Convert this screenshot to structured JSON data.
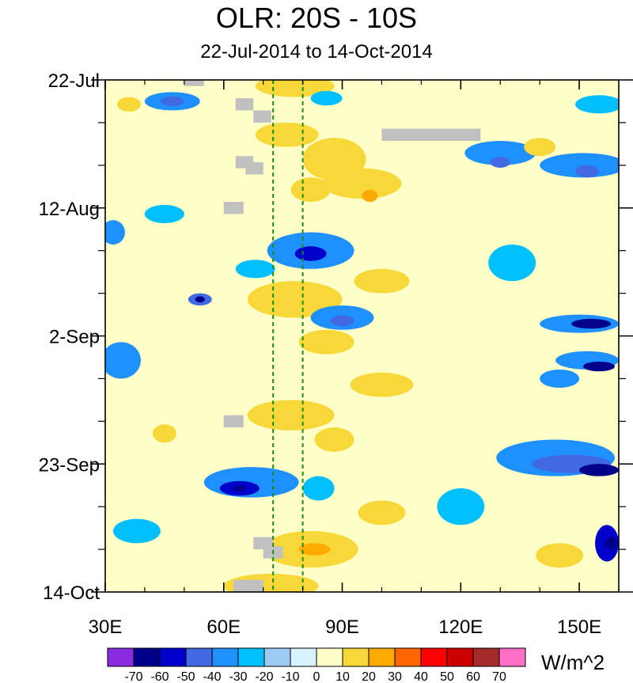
{
  "chart_data": {
    "type": "heatmap",
    "title": "OLR: 20S - 10S",
    "subtitle": "22-Jul-2014 to 14-Oct-2014",
    "xlabel": "",
    "ylabel": "",
    "xlim": [
      30,
      160
    ],
    "ylim_days": [
      0,
      84
    ],
    "x_ticks": [
      {
        "value": 30,
        "label": "30E"
      },
      {
        "value": 60,
        "label": "60E"
      },
      {
        "value": 90,
        "label": "90E"
      },
      {
        "value": 120,
        "label": "120E"
      },
      {
        "value": 150,
        "label": "150E"
      }
    ],
    "y_ticks": [
      {
        "day": 0,
        "label": "22-Jul"
      },
      {
        "day": 21,
        "label": "12-Aug"
      },
      {
        "day": 42,
        "label": "2-Sep"
      },
      {
        "day": 63,
        "label": "23-Sep"
      },
      {
        "day": 84,
        "label": "14-Oct"
      }
    ],
    "reference_lines_lon": [
      72.5,
      80
    ],
    "colorbar": {
      "units": "W/m^2",
      "labels": [
        "-70",
        "-60",
        "-50",
        "-40",
        "-30",
        "-20",
        "-10",
        "0",
        "10",
        "20",
        "30",
        "40",
        "50",
        "60",
        "70"
      ],
      "colors": [
        "#8a2be2",
        "#00008b",
        "#0000cd",
        "#4169e1",
        "#1e90ff",
        "#00bfff",
        "#9ecbf4",
        "#d8f3ff",
        "#ffffc8",
        "#f8d838",
        "#ffaa00",
        "#ff6600",
        "#ff0000",
        "#cc0000",
        "#a52a2a",
        "#ff6ec7"
      ]
    },
    "anomaly_regions": [
      {
        "lon": 36,
        "day": 4,
        "rlon": 3,
        "rday": 1.2,
        "value": 15
      },
      {
        "lon": 47,
        "day": 3.5,
        "rlon": 7,
        "rday": 1.5,
        "value": -25
      },
      {
        "lon": 47,
        "day": 3.5,
        "rlon": 3,
        "rday": 0.8,
        "value": -35
      },
      {
        "lon": 78,
        "day": 1,
        "rlon": 10,
        "rday": 1.8,
        "value": 15
      },
      {
        "lon": 86,
        "day": 3,
        "rlon": 4,
        "rday": 1.2,
        "value": -15
      },
      {
        "lon": 76,
        "day": 9,
        "rlon": 8,
        "rday": 2,
        "value": 15
      },
      {
        "lon": 88,
        "day": 13,
        "rlon": 8,
        "rday": 3.5,
        "value": 15
      },
      {
        "lon": 95,
        "day": 17,
        "rlon": 10,
        "rday": 2.5,
        "value": 15
      },
      {
        "lon": 97,
        "day": 19,
        "rlon": 2,
        "rday": 1,
        "value": 25
      },
      {
        "lon": 82,
        "day": 18,
        "rlon": 5,
        "rday": 2,
        "value": 15
      },
      {
        "lon": 130,
        "day": 12,
        "rlon": 9,
        "rday": 2,
        "value": -25
      },
      {
        "lon": 130,
        "day": 13.5,
        "rlon": 2.5,
        "rday": 0.9,
        "value": -35
      },
      {
        "lon": 151,
        "day": 14,
        "rlon": 11,
        "rday": 2,
        "value": -25
      },
      {
        "lon": 152,
        "day": 15,
        "rlon": 3,
        "rday": 1,
        "value": -35
      },
      {
        "lon": 155,
        "day": 4,
        "rlon": 6,
        "rday": 1.5,
        "value": -20
      },
      {
        "lon": 140,
        "day": 11,
        "rlon": 4,
        "rday": 1.5,
        "value": 10
      },
      {
        "lon": 32,
        "day": 25,
        "rlon": 3,
        "rday": 2,
        "value": -30
      },
      {
        "lon": 45,
        "day": 22,
        "rlon": 5,
        "rday": 1.5,
        "value": -15
      },
      {
        "lon": 82,
        "day": 28,
        "rlon": 11,
        "rday": 3,
        "value": -25
      },
      {
        "lon": 82,
        "day": 28.5,
        "rlon": 4,
        "rday": 1.2,
        "value": -45
      },
      {
        "lon": 68,
        "day": 31,
        "rlon": 5,
        "rday": 1.5,
        "value": -20
      },
      {
        "lon": 54,
        "day": 36,
        "rlon": 3,
        "rday": 1,
        "value": -40
      },
      {
        "lon": 54,
        "day": 36,
        "rlon": 1.2,
        "rday": 0.5,
        "value": -60
      },
      {
        "lon": 78,
        "day": 36,
        "rlon": 12,
        "rday": 3,
        "value": 15
      },
      {
        "lon": 90,
        "day": 39,
        "rlon": 8,
        "rday": 2,
        "value": -25
      },
      {
        "lon": 90,
        "day": 39.5,
        "rlon": 3,
        "rday": 0.9,
        "value": -40
      },
      {
        "lon": 86,
        "day": 43,
        "rlon": 7,
        "rday": 2,
        "value": 15
      },
      {
        "lon": 100,
        "day": 33,
        "rlon": 7,
        "rday": 2,
        "value": 15
      },
      {
        "lon": 34,
        "day": 46,
        "rlon": 5,
        "rday": 3,
        "value": -25
      },
      {
        "lon": 34,
        "day": 47,
        "rlon": 3,
        "rday": 1.2,
        "value": -30
      },
      {
        "lon": 150,
        "day": 40,
        "rlon": 10,
        "rday": 1.5,
        "value": -30
      },
      {
        "lon": 153,
        "day": 40,
        "rlon": 5,
        "rday": 0.8,
        "value": -60
      },
      {
        "lon": 152,
        "day": 46,
        "rlon": 8,
        "rday": 1.5,
        "value": -30
      },
      {
        "lon": 155,
        "day": 47,
        "rlon": 4,
        "rday": 0.8,
        "value": -60
      },
      {
        "lon": 145,
        "day": 49,
        "rlon": 5,
        "rday": 1.5,
        "value": -25
      },
      {
        "lon": 100,
        "day": 50,
        "rlon": 8,
        "rday": 2,
        "value": 15
      },
      {
        "lon": 77,
        "day": 55,
        "rlon": 11,
        "rday": 2.5,
        "value": 15
      },
      {
        "lon": 88,
        "day": 59,
        "rlon": 5,
        "rday": 2,
        "value": 15
      },
      {
        "lon": 67,
        "day": 66,
        "rlon": 12,
        "rday": 2.5,
        "value": -30
      },
      {
        "lon": 64,
        "day": 67,
        "rlon": 5,
        "rday": 1.2,
        "value": -45
      },
      {
        "lon": 64,
        "day": 67,
        "rlon": 1.5,
        "rday": 0.5,
        "value": -55
      },
      {
        "lon": 84,
        "day": 67,
        "rlon": 4,
        "rday": 2,
        "value": -20
      },
      {
        "lon": 144,
        "day": 62,
        "rlon": 15,
        "rday": 3,
        "value": -25
      },
      {
        "lon": 148,
        "day": 63,
        "rlon": 10,
        "rday": 1.5,
        "value": -35
      },
      {
        "lon": 155,
        "day": 64,
        "rlon": 5,
        "rday": 1,
        "value": -55
      },
      {
        "lon": 100,
        "day": 71,
        "rlon": 6,
        "rday": 2,
        "value": 15
      },
      {
        "lon": 82,
        "day": 77,
        "rlon": 12,
        "rday": 3,
        "value": 15
      },
      {
        "lon": 83,
        "day": 77,
        "rlon": 4,
        "rday": 1,
        "value": 25
      },
      {
        "lon": 72,
        "day": 83,
        "rlon": 12,
        "rday": 2,
        "value": 15
      },
      {
        "lon": 38,
        "day": 74,
        "rlon": 6,
        "rday": 2,
        "value": -20
      },
      {
        "lon": 157,
        "day": 76,
        "rlon": 3,
        "rday": 3,
        "value": -45
      },
      {
        "lon": 158,
        "day": 76,
        "rlon": 1.5,
        "rday": 1,
        "value": -60
      },
      {
        "lon": 145,
        "day": 78,
        "rlon": 6,
        "rday": 2,
        "value": 15
      },
      {
        "lon": 45,
        "day": 58,
        "rlon": 3,
        "rday": 1.5,
        "value": 15
      },
      {
        "lon": 133,
        "day": 30,
        "rlon": 6,
        "rday": 3,
        "value": -15
      },
      {
        "lon": 120,
        "day": 70,
        "rlon": 6,
        "rday": 3,
        "value": -15
      }
    ],
    "missing_data_patches": [
      {
        "lon0": 50,
        "lon1": 55,
        "day0": 0,
        "day1": 1
      },
      {
        "lon0": 63,
        "lon1": 67.5,
        "day0": 3,
        "day1": 5
      },
      {
        "lon0": 67.5,
        "lon1": 72,
        "day0": 5,
        "day1": 7
      },
      {
        "lon0": 100,
        "lon1": 125,
        "day0": 8,
        "day1": 10
      },
      {
        "lon0": 63,
        "lon1": 67.5,
        "day0": 12.5,
        "day1": 14.5
      },
      {
        "lon0": 65.5,
        "lon1": 70,
        "day0": 13.5,
        "day1": 15.5
      },
      {
        "lon0": 60,
        "lon1": 65,
        "day0": 20,
        "day1": 22
      },
      {
        "lon0": 60,
        "lon1": 65,
        "day0": 55,
        "day1": 57
      },
      {
        "lon0": 67.5,
        "lon1": 72.5,
        "day0": 75,
        "day1": 77
      },
      {
        "lon0": 70,
        "lon1": 75,
        "day0": 76.5,
        "day1": 78.5
      },
      {
        "lon0": 62.5,
        "lon1": 70,
        "day0": 82,
        "day1": 84
      }
    ]
  }
}
